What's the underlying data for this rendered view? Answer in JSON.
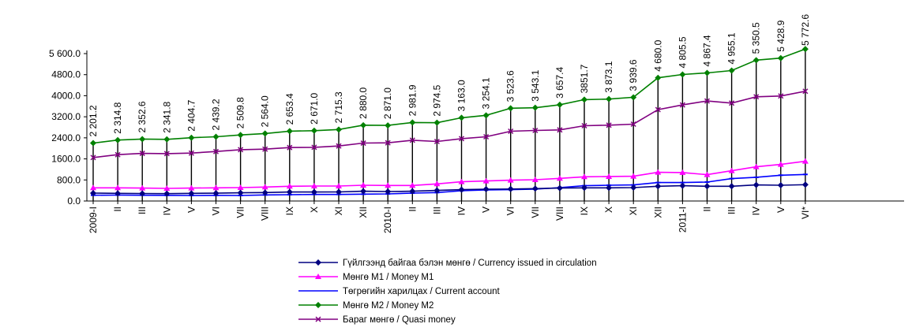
{
  "chart_data": {
    "type": "line",
    "categories": [
      "2009-I",
      "II",
      "III",
      "IV",
      "V",
      "VI",
      "VII",
      "VIII",
      "IX",
      "X",
      "XI",
      "XII",
      "2010-I",
      "II",
      "III",
      "IV",
      "V",
      "VI",
      "VII",
      "VIII",
      "IX",
      "X",
      "XI",
      "XII",
      "2011-I",
      "II",
      "III",
      "IV",
      "V",
      "VI*"
    ],
    "ylim": [
      0,
      5600
    ],
    "yticks": [
      "0.0",
      "800.0",
      "1600.0",
      "2400.0",
      "3200.0",
      "4000.0",
      "4800.0",
      "5 600.0"
    ],
    "data_labels": [
      "2 201.2",
      "2 314.8",
      "2 352.6",
      "2 341.8",
      "2 404.7",
      "2 439.2",
      "2 509.8",
      "2 564.0",
      "2 653.4",
      "2 671.0",
      "2 715.3",
      "2 880.0",
      "2 871.0",
      "2 981.9",
      "2 974.5",
      "3 163.0",
      "3 254.1",
      "3 523.6",
      "3 543.1",
      "3 657.4",
      "3851.7",
      "3 873.1",
      "3 939.6",
      "4 680.0",
      "4 805.5",
      "4 867.4",
      "4 955.1",
      "5 350.5",
      "5 428.9",
      "5 772.6"
    ],
    "series": [
      {
        "name": "Гүйлгээнд байгаа бэлэн мөнгө / Currency issued in circulation",
        "color": "#000080",
        "marker": "diamond",
        "values": [
          300,
          290,
          285,
          280,
          290,
          295,
          310,
          320,
          340,
          340,
          345,
          370,
          360,
          370,
          400,
          430,
          450,
          455,
          470,
          490,
          500,
          500,
          510,
          560,
          580,
          560,
          560,
          610,
          600,
          620
        ]
      },
      {
        "name": "Мөнгө М1 / Money M1",
        "color": "#ff00ff",
        "marker": "triangle",
        "values": [
          500,
          500,
          490,
          480,
          490,
          500,
          510,
          530,
          560,
          570,
          570,
          600,
          590,
          590,
          650,
          730,
          760,
          790,
          810,
          860,
          920,
          930,
          940,
          1090,
          1080,
          1000,
          1150,
          1300,
          1390,
          1510
        ]
      },
      {
        "name": "Төгрөгийн харилцах / Current account",
        "color": "#0000ff",
        "marker": "dash",
        "values": [
          220,
          225,
          220,
          215,
          210,
          215,
          210,
          230,
          240,
          250,
          250,
          260,
          270,
          300,
          320,
          390,
          420,
          430,
          450,
          510,
          580,
          600,
          610,
          700,
          700,
          720,
          850,
          900,
          980,
          1010
        ]
      },
      {
        "name": "Мөнгө М2 /  Money M2",
        "color": "#008000",
        "marker": "diamond",
        "values": [
          2201.2,
          2314.8,
          2352.6,
          2341.8,
          2404.7,
          2439.2,
          2509.8,
          2564.0,
          2653.4,
          2671.0,
          2715.3,
          2880.0,
          2871.0,
          2981.9,
          2974.5,
          3163.0,
          3254.1,
          3523.6,
          3543.1,
          3657.4,
          3851.7,
          3873.1,
          3939.6,
          4680.0,
          4805.5,
          4867.4,
          4955.1,
          5350.5,
          5428.9,
          5772.6
        ]
      },
      {
        "name": "Бараг мөнгө / Quasi money",
        "color": "#800080",
        "marker": "x",
        "values": [
          1650,
          1760,
          1810,
          1800,
          1820,
          1880,
          1950,
          1970,
          2030,
          2040,
          2090,
          2200,
          2210,
          2310,
          2260,
          2370,
          2440,
          2650,
          2680,
          2700,
          2860,
          2880,
          2920,
          3470,
          3650,
          3800,
          3720,
          3960,
          3990,
          4170
        ]
      }
    ]
  }
}
